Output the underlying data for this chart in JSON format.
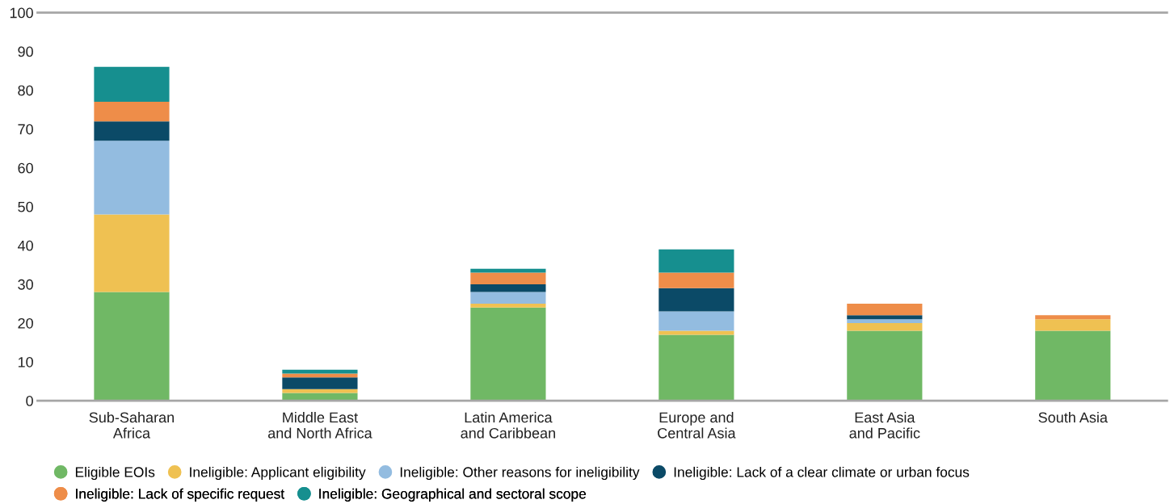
{
  "chart_data": {
    "type": "bar",
    "stacked": true,
    "categories": [
      "Sub-Saharan\nAfrica",
      "Middle East\nand North Africa",
      "Latin America\nand Caribbean",
      "Europe and\nCentral Asia",
      "East Asia\nand Pacific",
      "South Asia"
    ],
    "series": [
      {
        "name": "Eligible EOIs",
        "color": "#70b865",
        "values": [
          28,
          2,
          24,
          17,
          18,
          18
        ]
      },
      {
        "name": "Ineligible: Applicant eligibility",
        "color": "#efc152",
        "values": [
          20,
          1,
          1,
          1,
          2,
          3
        ]
      },
      {
        "name": "Ineligible: Other reasons for ineligibility",
        "color": "#93bce0",
        "values": [
          19,
          0,
          3,
          5,
          1,
          0
        ]
      },
      {
        "name": "Ineligible: Lack of a clear climate or urban focus",
        "color": "#0b4a67",
        "values": [
          5,
          3,
          2,
          6,
          1,
          0
        ]
      },
      {
        "name": "Ineligible: Lack of specific request",
        "color": "#ee8d49",
        "values": [
          5,
          1,
          3,
          4,
          3,
          1
        ]
      },
      {
        "name": "Ineligible: Geographical and sectoral scope",
        "color": "#168f8f",
        "values": [
          9,
          1,
          1,
          6,
          0,
          0
        ]
      }
    ],
    "ylim": [
      0,
      100
    ],
    "yticks": [
      0,
      10,
      20,
      30,
      40,
      50,
      60,
      70,
      80,
      90,
      100
    ],
    "grid": false,
    "legend": "bottom"
  }
}
